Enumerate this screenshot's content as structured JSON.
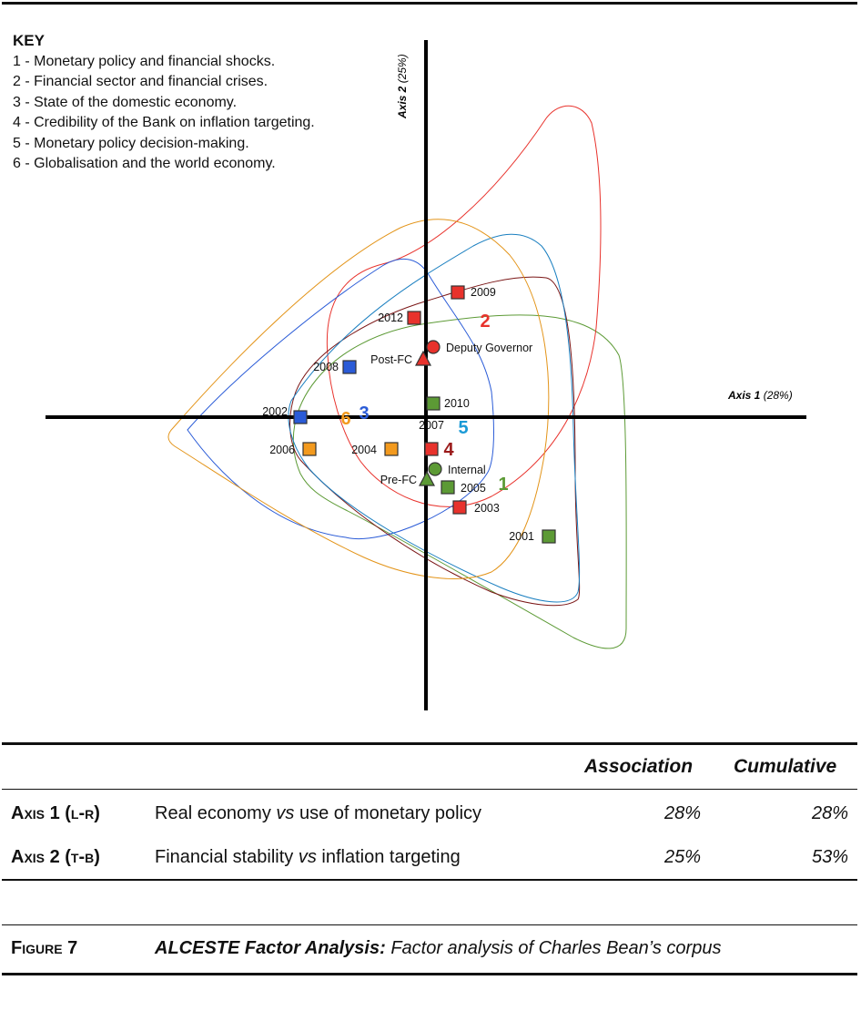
{
  "key": {
    "title": "KEY",
    "items": [
      "1 - Monetary policy and financial shocks.",
      "2 - Financial sector and financial crises.",
      "3 - State of the domestic economy.",
      "4 - Credibility of the Bank on inflation targeting.",
      "5 - Monetary policy decision-making.",
      "6 - Globalisation and the world economy."
    ]
  },
  "chart_data": {
    "type": "scatter",
    "axis1": {
      "name": "Axis 1",
      "pct": "(28%)"
    },
    "axis2": {
      "name": "Axis 2",
      "pct": "(25%)"
    },
    "points": [
      {
        "label": "2009",
        "x": 0.35,
        "y": 1.37,
        "shape": "square",
        "color": "#e8322c"
      },
      {
        "label": "2012",
        "x": -0.13,
        "y": 1.09,
        "shape": "square",
        "color": "#e8322c"
      },
      {
        "label": "Deputy Governor",
        "x": 0.08,
        "y": 0.77,
        "shape": "circle",
        "color": "#e8322c"
      },
      {
        "label": "Post-FC",
        "x": -0.03,
        "y": 0.63,
        "shape": "triangle",
        "color": "#e8322c"
      },
      {
        "label": "2008",
        "x": -0.84,
        "y": 0.55,
        "shape": "square",
        "color": "#2a5bd7"
      },
      {
        "label": "2010",
        "x": 0.08,
        "y": 0.15,
        "shape": "square",
        "color": "#5c9a35"
      },
      {
        "label": "2002",
        "x": -1.38,
        "y": 0.0,
        "shape": "square",
        "color": "#2a5bd7"
      },
      {
        "label": "2007",
        "x": 0.06,
        "y": -0.35,
        "shape": "square",
        "color": "#e8322c"
      },
      {
        "label": "2006",
        "x": -1.28,
        "y": -0.35,
        "shape": "square",
        "color": "#f39a1e"
      },
      {
        "label": "2004",
        "x": -0.38,
        "y": -0.35,
        "shape": "square",
        "color": "#f39a1e"
      },
      {
        "label": "Internal",
        "x": 0.1,
        "y": -0.57,
        "shape": "circle",
        "color": "#5c9a35"
      },
      {
        "label": "Pre-FC",
        "x": 0.01,
        "y": -0.69,
        "shape": "triangle",
        "color": "#5c9a35"
      },
      {
        "label": "2005",
        "x": 0.24,
        "y": -0.77,
        "shape": "square",
        "color": "#5c9a35"
      },
      {
        "label": "2003",
        "x": 0.37,
        "y": -0.99,
        "shape": "square",
        "color": "#e8322c"
      },
      {
        "label": "2001",
        "x": 1.35,
        "y": -1.31,
        "shape": "square",
        "color": "#5c9a35"
      }
    ],
    "clusters": [
      {
        "id": "1",
        "color": "#5c9a35",
        "label_x": 0.85,
        "label_y": -0.73
      },
      {
        "id": "2",
        "color": "#e8322c",
        "label_x": 0.65,
        "label_y": 1.06
      },
      {
        "id": "3",
        "color": "#2a5bd7",
        "label_x": -0.68,
        "label_y": 0.05
      },
      {
        "id": "4",
        "color": "#9b1b1b",
        "label_x": 0.25,
        "label_y": -0.35
      },
      {
        "id": "5",
        "color": "#1a9ad6",
        "label_x": 0.41,
        "label_y": -0.11
      },
      {
        "id": "6",
        "color": "#f39a1e",
        "label_x": -0.88,
        "label_y": -0.01
      }
    ]
  },
  "table": {
    "headers": {
      "association": "Association",
      "cumulative": "Cumulative"
    },
    "rows": [
      {
        "axis": "Axis 1 (l-r)",
        "desc_pre": "Real economy ",
        "vs": "vs",
        "desc_post": " use of monetary policy",
        "association": "28%",
        "cumulative": "28%"
      },
      {
        "axis": "Axis 2 (t-b)",
        "desc_pre": "Financial stability ",
        "vs": "vs",
        "desc_post": " inflation targeting",
        "association": "25%",
        "cumulative": "53%"
      }
    ]
  },
  "caption": {
    "figure": "Figure 7",
    "title_bold": "ALCESTE Factor Analysis:",
    "title_rest": " Factor analysis of Charles Bean’s corpus"
  }
}
